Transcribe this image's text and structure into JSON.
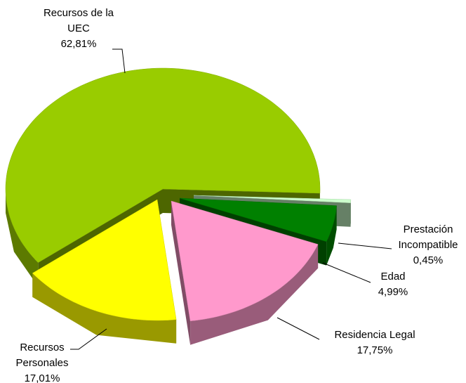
{
  "chart_data": {
    "type": "pie",
    "categories": [
      "Prestación Incompatible",
      "Edad",
      "Residencia Legal",
      "Recursos Personales",
      "Recursos de la UEC"
    ],
    "values": [
      0.45,
      4.99,
      17.75,
      17.01,
      62.81
    ],
    "value_labels": [
      "0,45%",
      "4,99%",
      "17,75%",
      "17,01%",
      "62,81%"
    ],
    "colors": [
      "#ccffcc",
      "#008000",
      "#ff99cc",
      "#ffff00",
      "#99cc00"
    ]
  }
}
